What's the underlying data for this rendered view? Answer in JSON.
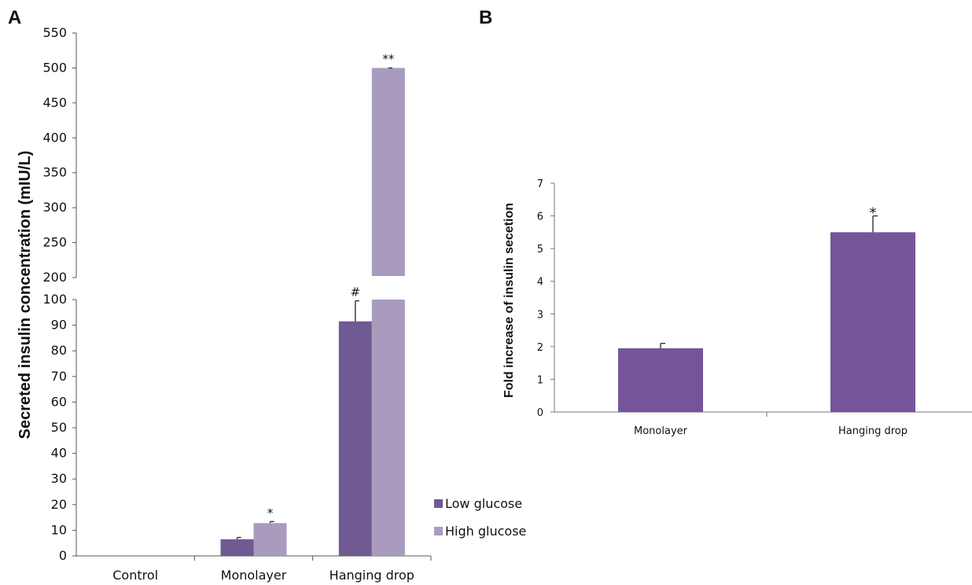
{
  "chart_data": [
    {
      "panel": "A",
      "type": "bar",
      "ylabel": "Secreted insulin concentration (mIU/L)",
      "categories": [
        "Control",
        "Monolayer",
        "Hanging drop"
      ],
      "series": [
        {
          "name": "Low glucose",
          "color": "#6f5a93",
          "values": [
            0,
            6.5,
            91.5
          ],
          "errors": [
            0,
            0.7,
            8
          ],
          "annotations": [
            "",
            "",
            "#"
          ]
        },
        {
          "name": "High glucose",
          "color": "#a89bbd",
          "values": [
            0,
            12.8,
            500
          ],
          "errors": [
            0,
            0.6,
            0.5
          ],
          "annotations": [
            "",
            "*",
            "**"
          ]
        }
      ],
      "axis_break": {
        "lower_range": [
          0,
          100
        ],
        "upper_range": [
          200,
          550
        ]
      },
      "lower_ticks": [
        0,
        10,
        20,
        30,
        40,
        50,
        60,
        70,
        80,
        90,
        100
      ],
      "upper_ticks": [
        200,
        250,
        300,
        350,
        400,
        450,
        500,
        550
      ],
      "legend_position": "right"
    },
    {
      "panel": "B",
      "type": "bar",
      "ylabel": "Fold increase of insulin secetion",
      "categories": [
        "Monolayer",
        "Hanging drop"
      ],
      "series": [
        {
          "color": "#76549a",
          "values": [
            1.95,
            5.5
          ],
          "errors": [
            0.15,
            0.5
          ],
          "annotations": [
            "",
            "*"
          ]
        }
      ],
      "ylim": [
        0,
        7
      ],
      "ticks": [
        0,
        1,
        2,
        3,
        4,
        5,
        6,
        7
      ]
    }
  ]
}
